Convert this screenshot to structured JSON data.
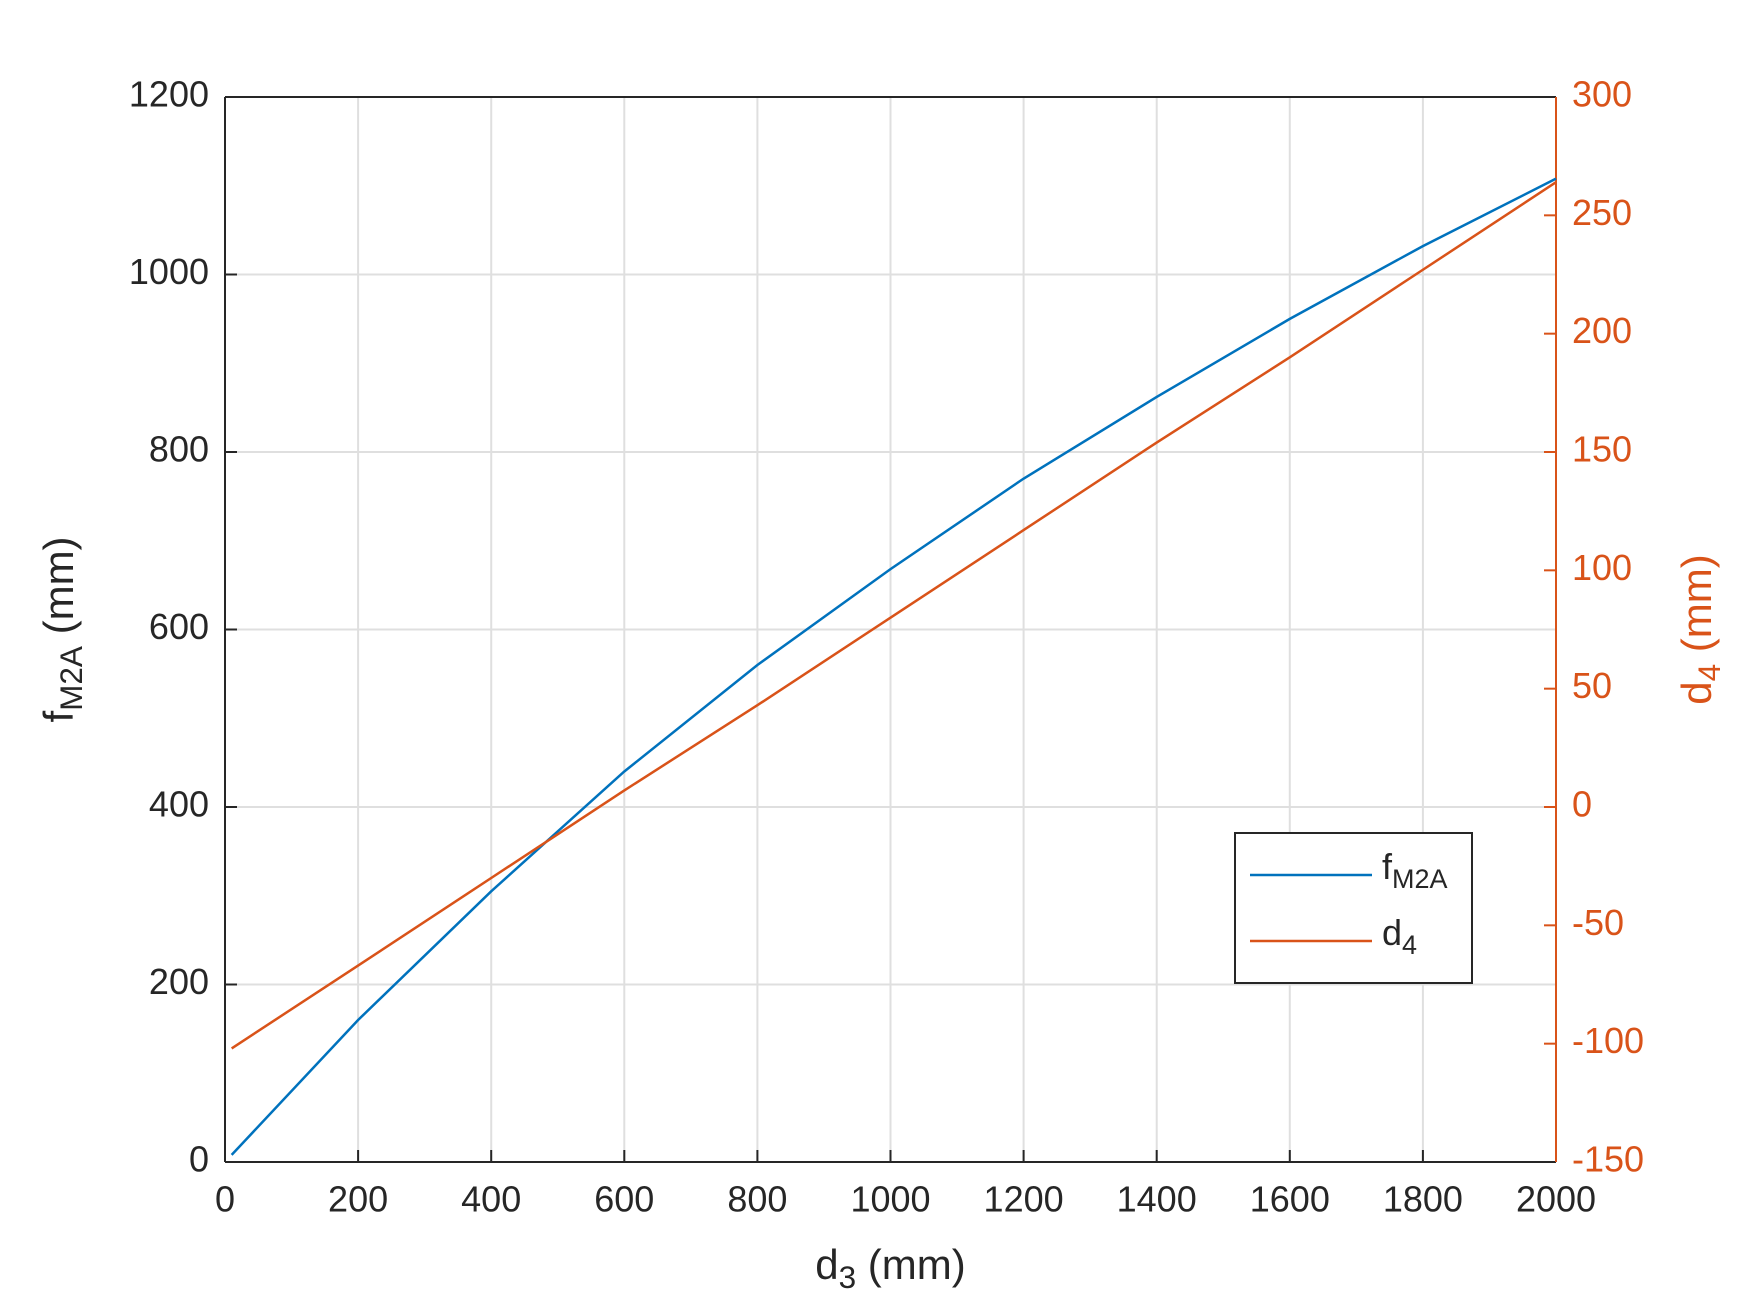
{
  "chart_data": {
    "type": "line",
    "xlabel": [
      "d",
      "3",
      " (mm)"
    ],
    "ylabel": [
      "f",
      "M2A",
      " (mm)"
    ],
    "y2label": [
      "d",
      "4",
      " (mm)"
    ],
    "x": [
      10,
      200,
      400,
      600,
      800,
      1000,
      1200,
      1400,
      1600,
      1800,
      2000
    ],
    "series": [
      {
        "name": [
          "f",
          "M2A"
        ],
        "color": "#0072bd",
        "values": [
          8,
          160,
          305,
          440,
          560,
          668,
          770,
          862,
          950,
          1032,
          1108
        ]
      },
      {
        "name": [
          "d",
          "4"
        ],
        "color": "#d95319",
        "axis": "y2",
        "values": [
          -102,
          -67,
          -30,
          7,
          43,
          80,
          117,
          154,
          190,
          227,
          264
        ]
      }
    ],
    "xlim": [
      0,
      2000
    ],
    "xticks": [
      0,
      200,
      400,
      600,
      800,
      1000,
      1200,
      1400,
      1600,
      1800,
      2000
    ],
    "ylim": [
      0,
      1200
    ],
    "yticks": [
      0,
      200,
      400,
      600,
      800,
      1000,
      1200
    ],
    "y2lim": [
      -150,
      300
    ],
    "y2ticks": [
      -150,
      -100,
      -50,
      0,
      50,
      100,
      150,
      200,
      250,
      300
    ],
    "y2color": "#d95319",
    "grid": true,
    "legend": "lower right"
  }
}
